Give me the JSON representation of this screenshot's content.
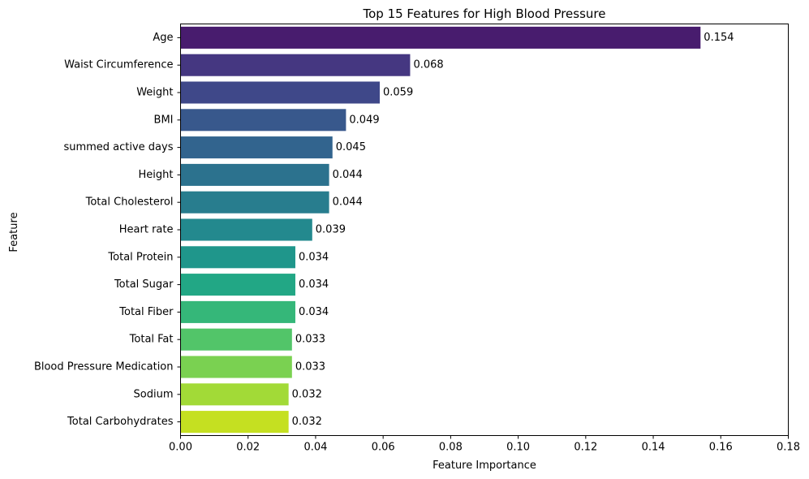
{
  "chart_data": {
    "type": "bar",
    "orientation": "horizontal",
    "title": "Top 15 Features for High Blood Pressure",
    "xlabel": "Feature Importance",
    "ylabel": "Feature",
    "xlim": [
      0,
      0.18
    ],
    "xticks": [
      "0.00",
      "0.02",
      "0.04",
      "0.06",
      "0.08",
      "0.10",
      "0.12",
      "0.14",
      "0.16",
      "0.18"
    ],
    "grid": false,
    "categories": [
      "Age",
      "Waist Circumference",
      "Weight",
      "BMI",
      "summed active days",
      "Height",
      "Total Cholesterol",
      "Heart rate",
      "Total Protein",
      "Total Sugar",
      "Total Fiber",
      "Total Fat",
      "Blood Pressure Medication",
      "Sodium",
      "Total Carbohydrates"
    ],
    "values": [
      0.154,
      0.068,
      0.059,
      0.049,
      0.045,
      0.044,
      0.044,
      0.039,
      0.034,
      0.034,
      0.034,
      0.033,
      0.033,
      0.032,
      0.032
    ],
    "value_labels": [
      "0.154",
      "0.068",
      "0.059",
      "0.049",
      "0.045",
      "0.044",
      "0.044",
      "0.039",
      "0.034",
      "0.034",
      "0.034",
      "0.033",
      "0.033",
      "0.032",
      "0.032"
    ],
    "colors": [
      "#481c6e",
      "#453781",
      "#3f4889",
      "#38588c",
      "#32648e",
      "#2c728e",
      "#287d8e",
      "#23898e",
      "#1f968b",
      "#22a785",
      "#35b779",
      "#52c569",
      "#7ad151",
      "#a2da37",
      "#c5e021"
    ],
    "palette": "viridis"
  }
}
